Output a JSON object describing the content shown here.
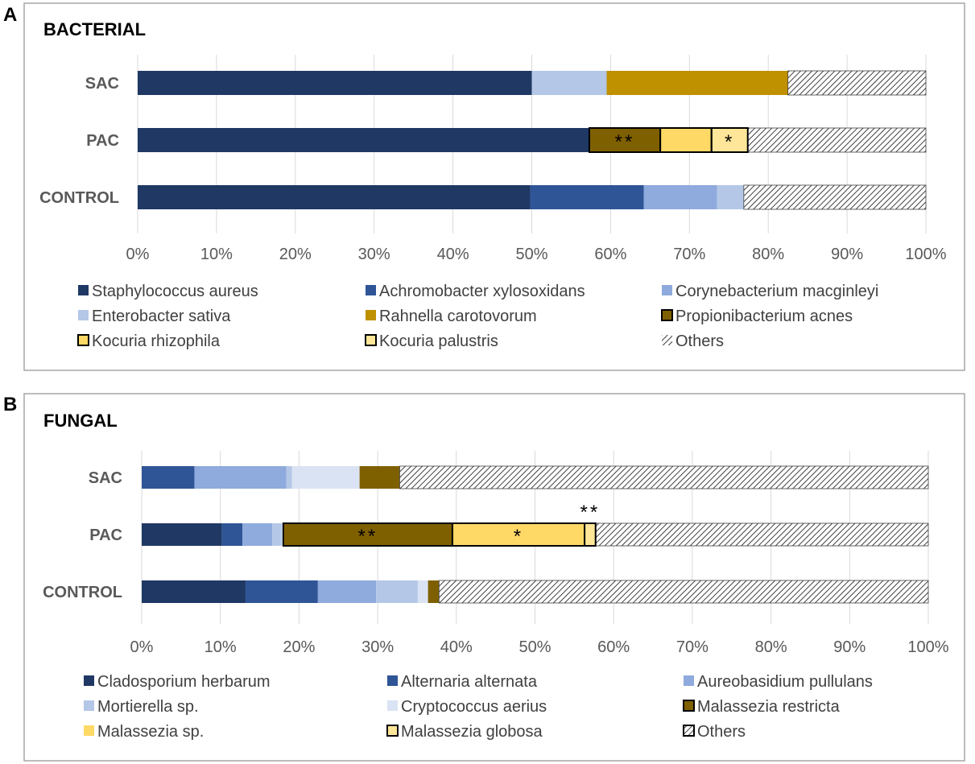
{
  "chart_data": [
    {
      "panel_letter": "A",
      "title": "BACTERIAL",
      "type": "stacked-bar-horizontal",
      "categories": [
        "SAC",
        "PAC",
        "CONTROL"
      ],
      "xaxis": {
        "min": 0,
        "max": 100,
        "ticks": [
          0,
          10,
          20,
          30,
          40,
          50,
          60,
          70,
          80,
          90,
          100
        ],
        "tick_suffix": "%"
      },
      "gridlines": true,
      "legend": {
        "position": "bottom",
        "entries": [
          {
            "label": "Staphylococcus aureus",
            "color": "#203864",
            "pattern": "solid",
            "outlined": false
          },
          {
            "label": "Achromobacter xylosoxidans",
            "color": "#2f5597",
            "pattern": "solid",
            "outlined": false
          },
          {
            "label": "Corynebacterium macginleyi",
            "color": "#8faadc",
            "pattern": "solid",
            "outlined": false
          },
          {
            "label": "Enterobacter sativa",
            "color": "#b4c7e7",
            "pattern": "solid",
            "outlined": false
          },
          {
            "label": "Rahnella carotovorum",
            "color": "#bf9000",
            "pattern": "solid",
            "outlined": false
          },
          {
            "label": "Propionibacterium acnes",
            "color": "#7f6000",
            "pattern": "solid",
            "outlined": true
          },
          {
            "label": "Kocuria rhizophila",
            "color": "#ffd966",
            "pattern": "solid",
            "outlined": true
          },
          {
            "label": "Kocuria palustris",
            "color": "#ffe699",
            "pattern": "solid",
            "outlined": true
          },
          {
            "label": "Others",
            "color": "#ffffff",
            "pattern": "hatch",
            "outlined": false
          }
        ]
      },
      "bars": [
        {
          "category": "SAC",
          "segments": [
            {
              "series": 0,
              "value": 50
            },
            {
              "series": 3,
              "value": 9.5
            },
            {
              "series": 4,
              "value": 23
            },
            {
              "series": 8,
              "value": 17.5
            }
          ]
        },
        {
          "category": "PAC",
          "segments": [
            {
              "series": 0,
              "value": 57.3
            },
            {
              "series": 5,
              "value": 9,
              "outlined": true,
              "annotation": "**"
            },
            {
              "series": 6,
              "value": 6.5,
              "outlined": true
            },
            {
              "series": 7,
              "value": 4.6,
              "outlined": true,
              "annotation": "*"
            },
            {
              "series": 8,
              "value": 22.6
            }
          ]
        },
        {
          "category": "CONTROL",
          "segments": [
            {
              "series": 0,
              "value": 49.8
            },
            {
              "series": 1,
              "value": 14.4
            },
            {
              "series": 2,
              "value": 9.3
            },
            {
              "series": 3,
              "value": 3.4
            },
            {
              "series": 8,
              "value": 23.1
            }
          ]
        }
      ]
    },
    {
      "panel_letter": "B",
      "title": "FUNGAL",
      "type": "stacked-bar-horizontal",
      "categories": [
        "SAC",
        "PAC",
        "CONTROL"
      ],
      "xaxis": {
        "min": 0,
        "max": 100,
        "ticks": [
          0,
          10,
          20,
          30,
          40,
          50,
          60,
          70,
          80,
          90,
          100
        ],
        "tick_suffix": "%"
      },
      "gridlines": true,
      "legend": {
        "position": "bottom",
        "entries": [
          {
            "label": "Cladosporium herbarum",
            "color": "#203864",
            "pattern": "solid",
            "outlined": false
          },
          {
            "label": "Alternaria alternata",
            "color": "#2f5597",
            "pattern": "solid",
            "outlined": false
          },
          {
            "label": "Aureobasidium pullulans",
            "color": "#8faadc",
            "pattern": "solid",
            "outlined": false
          },
          {
            "label": "Mortierella sp.",
            "color": "#b4c7e7",
            "pattern": "solid",
            "outlined": false
          },
          {
            "label": "Cryptococcus aerius",
            "color": "#dae3f3",
            "pattern": "solid",
            "outlined": false
          },
          {
            "label": "Malassezia restricta",
            "color": "#7f6000",
            "pattern": "solid",
            "outlined": true
          },
          {
            "label": "Malassezia sp.",
            "color": "#ffd966",
            "pattern": "solid",
            "outlined": false
          },
          {
            "label": "Malassezia globosa",
            "color": "#ffe699",
            "pattern": "solid",
            "outlined": true
          },
          {
            "label": "Others",
            "color": "#ffffff",
            "pattern": "hatch",
            "outlined": true
          }
        ]
      },
      "bars": [
        {
          "category": "SAC",
          "segments": [
            {
              "series": 1,
              "value": 6.7
            },
            {
              "series": 2,
              "value": 11.7
            },
            {
              "series": 3,
              "value": 0.7
            },
            {
              "series": 4,
              "value": 8.6
            },
            {
              "series": 5,
              "value": 5.1
            },
            {
              "series": 8,
              "value": 67.2
            }
          ]
        },
        {
          "category": "PAC",
          "segments": [
            {
              "series": 0,
              "value": 10.2
            },
            {
              "series": 1,
              "value": 2.6
            },
            {
              "series": 2,
              "value": 3.8
            },
            {
              "series": 3,
              "value": 1.2
            },
            {
              "series": 4,
              "value": 0.2
            },
            {
              "series": 5,
              "value": 21.5,
              "outlined": true,
              "annotation": "**"
            },
            {
              "series": 6,
              "value": 16.8,
              "outlined": true,
              "annotation": "*"
            },
            {
              "series": 7,
              "value": 1.4,
              "outlined": true,
              "annotation": "**",
              "annotation_above": true
            },
            {
              "series": 8,
              "value": 42.3
            }
          ]
        },
        {
          "category": "CONTROL",
          "segments": [
            {
              "series": 0,
              "value": 13.2
            },
            {
              "series": 1,
              "value": 9.2
            },
            {
              "series": 2,
              "value": 7.4
            },
            {
              "series": 3,
              "value": 5.3
            },
            {
              "series": 4,
              "value": 1.3
            },
            {
              "series": 5,
              "value": 1.4
            },
            {
              "series": 8,
              "value": 62.2
            }
          ]
        }
      ]
    }
  ]
}
